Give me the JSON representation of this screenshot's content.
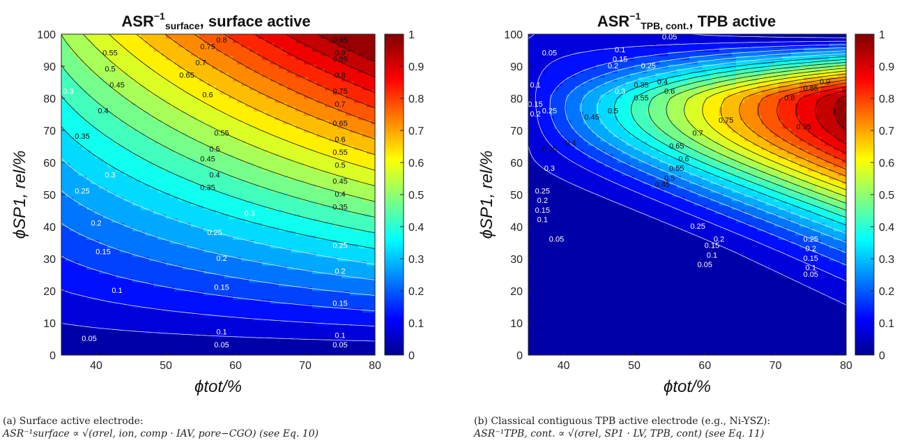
{
  "chart_data": [
    {
      "type": "heatmap",
      "panel": "a",
      "title_main": "ASR",
      "title_sup": "−1",
      "title_sub": "surface",
      "title_rest": ", surface active",
      "xlabel": "ϕtot/%",
      "ylabel": "ϕSP1, rel/%",
      "xlim": [
        35,
        80
      ],
      "ylim": [
        0,
        100
      ],
      "x_ticks": [
        "40",
        "50",
        "60",
        "70",
        "80"
      ],
      "y_ticks": [
        "0",
        "10",
        "20",
        "30",
        "40",
        "50",
        "60",
        "70",
        "80",
        "90",
        "100"
      ],
      "colorbar_ticks": [
        "0",
        "0.1",
        "0.2",
        "0.3",
        "0.4",
        "0.5",
        "0.6",
        "0.7",
        "0.8",
        "0.9",
        "1"
      ],
      "colorbar_range": [
        0,
        1
      ],
      "colormap": "jet",
      "model": "surface",
      "contour_levels": [
        0.05,
        0.1,
        0.15,
        0.2,
        0.25,
        0.3,
        0.35,
        0.4,
        0.45,
        0.5,
        0.55,
        0.6,
        0.65,
        0.7,
        0.75,
        0.8,
        0.85,
        0.9,
        0.95
      ],
      "contour_labels": [
        {
          "text": "0.05",
          "x": 39,
          "y": 5
        },
        {
          "text": "0.05",
          "x": 58,
          "y": 3
        },
        {
          "text": "0.05",
          "x": 75,
          "y": 3
        },
        {
          "text": "0.1",
          "x": 43,
          "y": 20
        },
        {
          "text": "0.1",
          "x": 58,
          "y": 7
        },
        {
          "text": "0.1",
          "x": 75,
          "y": 6
        },
        {
          "text": "0.15",
          "x": 41,
          "y": 32
        },
        {
          "text": "0.15",
          "x": 58,
          "y": 21
        },
        {
          "text": "0.15",
          "x": 75,
          "y": 16
        },
        {
          "text": "0.2",
          "x": 40,
          "y": 41
        },
        {
          "text": "0.2",
          "x": 58,
          "y": 30
        },
        {
          "text": "0.2",
          "x": 75,
          "y": 26
        },
        {
          "text": "0.25",
          "x": 38,
          "y": 51
        },
        {
          "text": "0.25",
          "x": 57,
          "y": 38
        },
        {
          "text": "0.25",
          "x": 75,
          "y": 34
        },
        {
          "text": "0.3",
          "x": 36,
          "y": 82
        },
        {
          "text": "0.3",
          "x": 42,
          "y": 56
        },
        {
          "text": "0.3",
          "x": 62,
          "y": 44
        },
        {
          "text": "0.35",
          "x": 38,
          "y": 68
        },
        {
          "text": "0.35",
          "x": 56,
          "y": 52
        },
        {
          "text": "0.35",
          "x": 75,
          "y": 46
        },
        {
          "text": "0.4",
          "x": 41,
          "y": 76
        },
        {
          "text": "0.4",
          "x": 57,
          "y": 56
        },
        {
          "text": "0.4",
          "x": 75,
          "y": 50
        },
        {
          "text": "0.45",
          "x": 43,
          "y": 84
        },
        {
          "text": "0.45",
          "x": 56,
          "y": 61
        },
        {
          "text": "0.45",
          "x": 75,
          "y": 54
        },
        {
          "text": "0.5",
          "x": 42,
          "y": 89
        },
        {
          "text": "0.5",
          "x": 57,
          "y": 64
        },
        {
          "text": "0.5",
          "x": 75,
          "y": 59
        },
        {
          "text": "0.55",
          "x": 42,
          "y": 94
        },
        {
          "text": "0.55",
          "x": 58,
          "y": 69
        },
        {
          "text": "0.55",
          "x": 75,
          "y": 63
        },
        {
          "text": "0.6",
          "x": 56,
          "y": 81
        },
        {
          "text": "0.6",
          "x": 75,
          "y": 67
        },
        {
          "text": "0.65",
          "x": 53,
          "y": 87
        },
        {
          "text": "0.65",
          "x": 75,
          "y": 72
        },
        {
          "text": "0.7",
          "x": 55,
          "y": 91
        },
        {
          "text": "0.7",
          "x": 75,
          "y": 78
        },
        {
          "text": "0.75",
          "x": 56,
          "y": 96
        },
        {
          "text": "0.75",
          "x": 75,
          "y": 82
        },
        {
          "text": "0.8",
          "x": 58,
          "y": 98
        },
        {
          "text": "0.8",
          "x": 75,
          "y": 87
        },
        {
          "text": "0.85",
          "x": 75,
          "y": 92
        },
        {
          "text": "0.9",
          "x": 75,
          "y": 94
        },
        {
          "text": "0.95",
          "x": 75,
          "y": 98
        }
      ]
    },
    {
      "type": "heatmap",
      "panel": "b",
      "title_main": "ASR",
      "title_sup": "−1",
      "title_sub": "TPB, cont.",
      "title_rest": ", TPB active",
      "xlabel": "ϕtot/%",
      "ylabel": "ϕSP1, rel/%",
      "xlim": [
        35,
        80
      ],
      "ylim": [
        0,
        100
      ],
      "x_ticks": [
        "40",
        "50",
        "60",
        "70",
        "80"
      ],
      "y_ticks": [
        "0",
        "10",
        "20",
        "30",
        "40",
        "50",
        "60",
        "70",
        "80",
        "90",
        "100"
      ],
      "colorbar_ticks": [
        "0",
        "0.1",
        "0.2",
        "0.3",
        "0.4",
        "0.5",
        "0.6",
        "0.7",
        "0.8",
        "0.9",
        "1"
      ],
      "colorbar_range": [
        0,
        1
      ],
      "colormap": "jet",
      "model": "tpb",
      "contour_levels": [
        0.05,
        0.1,
        0.15,
        0.2,
        0.25,
        0.3,
        0.35,
        0.4,
        0.45,
        0.5,
        0.55,
        0.6,
        0.65,
        0.7,
        0.75,
        0.8,
        0.85,
        0.9,
        0.95
      ],
      "contour_labels": [
        {
          "text": "0.05",
          "x": 38,
          "y": 94
        },
        {
          "text": "0.05",
          "x": 55,
          "y": 99
        },
        {
          "text": "0.05",
          "x": 39,
          "y": 36
        },
        {
          "text": "0.05",
          "x": 60,
          "y": 28
        },
        {
          "text": "0.05",
          "x": 75,
          "y": 25
        },
        {
          "text": "0.1",
          "x": 36,
          "y": 84
        },
        {
          "text": "0.1",
          "x": 48,
          "y": 95
        },
        {
          "text": "0.1",
          "x": 37,
          "y": 42
        },
        {
          "text": "0.1",
          "x": 61,
          "y": 31
        },
        {
          "text": "0.1",
          "x": 75,
          "y": 27
        },
        {
          "text": "0.15",
          "x": 36,
          "y": 78
        },
        {
          "text": "0.15",
          "x": 48,
          "y": 92
        },
        {
          "text": "0.15",
          "x": 37,
          "y": 45
        },
        {
          "text": "0.15",
          "x": 61,
          "y": 34
        },
        {
          "text": "0.15",
          "x": 75,
          "y": 30
        },
        {
          "text": "0.2",
          "x": 36,
          "y": 75
        },
        {
          "text": "0.2",
          "x": 47,
          "y": 90
        },
        {
          "text": "0.2",
          "x": 37,
          "y": 48
        },
        {
          "text": "0.2",
          "x": 62,
          "y": 36
        },
        {
          "text": "0.2",
          "x": 75,
          "y": 33
        },
        {
          "text": "0.25",
          "x": 38,
          "y": 76
        },
        {
          "text": "0.25",
          "x": 52,
          "y": 90
        },
        {
          "text": "0.25",
          "x": 37,
          "y": 51
        },
        {
          "text": "0.25",
          "x": 59,
          "y": 40
        },
        {
          "text": "0.25",
          "x": 75,
          "y": 36
        },
        {
          "text": "0.3",
          "x": 48,
          "y": 82
        },
        {
          "text": "0.3",
          "x": 38,
          "y": 58
        },
        {
          "text": "0.35",
          "x": 51,
          "y": 84
        },
        {
          "text": "0.35",
          "x": 38,
          "y": 64
        },
        {
          "text": "0.4",
          "x": 54,
          "y": 85
        },
        {
          "text": "0.4",
          "x": 41,
          "y": 66
        },
        {
          "text": "0.45",
          "x": 44,
          "y": 74
        },
        {
          "text": "0.45",
          "x": 54,
          "y": 53
        },
        {
          "text": "0.5",
          "x": 47,
          "y": 76
        },
        {
          "text": "0.5",
          "x": 55,
          "y": 55
        },
        {
          "text": "0.55",
          "x": 51,
          "y": 80
        },
        {
          "text": "0.55",
          "x": 56,
          "y": 58
        },
        {
          "text": "0.6",
          "x": 55,
          "y": 82
        },
        {
          "text": "0.6",
          "x": 57,
          "y": 61
        },
        {
          "text": "0.65",
          "x": 56,
          "y": 65
        },
        {
          "text": "0.7",
          "x": 59,
          "y": 69
        },
        {
          "text": "0.75",
          "x": 63,
          "y": 73
        },
        {
          "text": "0.8",
          "x": 72,
          "y": 80
        },
        {
          "text": "0.85",
          "x": 75,
          "y": 83
        },
        {
          "text": "0.9",
          "x": 77,
          "y": 85
        },
        {
          "text": "0.95",
          "x": 74,
          "y": 71
        }
      ]
    }
  ],
  "captions": [
    {
      "title": "(a) Surface active electrode:",
      "formula": "ASR⁻¹surface ∝ √(σrel, ion, comp · IAV, pore−CGO) (see Eq. 10)"
    },
    {
      "title": "(b) Classical contiguous TPB active electrode (e.g., Ni-YSZ):",
      "formula": "ASR⁻¹TPB, cont. ∝ √(σrel, SP1 · LV, TPB, cont) (see Eq. 11)"
    }
  ]
}
